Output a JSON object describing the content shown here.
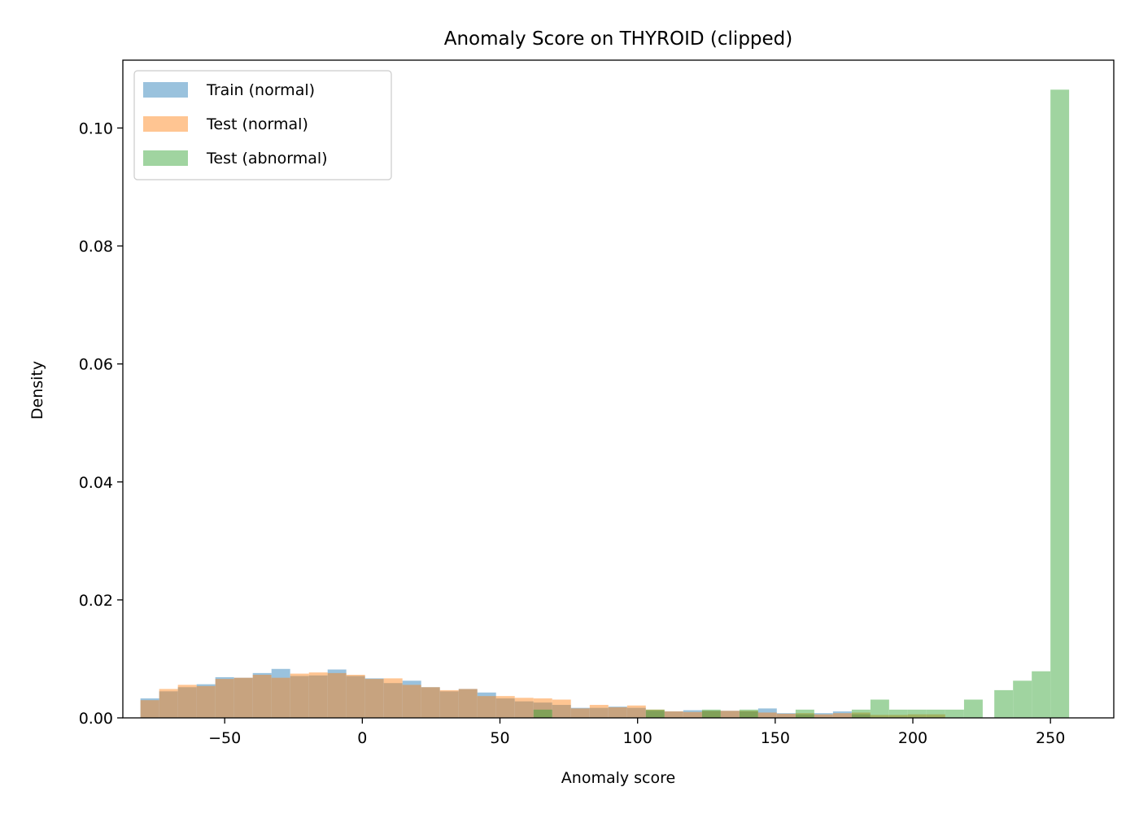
{
  "chart_data": {
    "type": "bar",
    "title": "Anomaly Score on THYROID (clipped)",
    "xlabel": "Anomaly score",
    "ylabel": "Density",
    "xlim": [
      -87,
      273
    ],
    "ylim": [
      0,
      0.1115
    ],
    "xticks": [
      -50,
      0,
      50,
      100,
      150,
      200,
      250
    ],
    "xtick_labels": [
      "−50",
      "0",
      "50",
      "100",
      "150",
      "200",
      "250"
    ],
    "yticks": [
      0,
      0.02,
      0.04,
      0.06,
      0.08,
      0.1
    ],
    "ytick_labels": [
      "0.00",
      "0.02",
      "0.04",
      "0.06",
      "0.08",
      "0.10"
    ],
    "grid": false,
    "legend_position": "top-left",
    "bin_width": 6.78,
    "series": [
      {
        "name": "Train (normal)",
        "color": "#1f77b4",
        "opacity": 0.45,
        "bin_starts": [
          -80.6,
          -73.8,
          -67.0,
          -60.2,
          -53.4,
          -46.6,
          -39.8,
          -33.0,
          -26.2,
          -19.4,
          -12.6,
          -5.8,
          1.0,
          7.8,
          14.6,
          21.4,
          28.2,
          35.0,
          41.8,
          48.6,
          55.4,
          62.2,
          69.0,
          75.8,
          82.6,
          89.4,
          96.2,
          103.0,
          109.8,
          116.6,
          123.4,
          130.2,
          137.0,
          143.8,
          150.6,
          157.4,
          164.2,
          171.0,
          177.8
        ],
        "values": [
          0.0033,
          0.0045,
          0.0052,
          0.0057,
          0.0069,
          0.0068,
          0.0076,
          0.0083,
          0.0071,
          0.0072,
          0.0082,
          0.0071,
          0.0067,
          0.0059,
          0.0063,
          0.0052,
          0.0045,
          0.0049,
          0.0043,
          0.0033,
          0.0028,
          0.0026,
          0.0022,
          0.0017,
          0.0017,
          0.0019,
          0.0017,
          0.0012,
          0.0011,
          0.0013,
          0.0012,
          0.0012,
          0.0011,
          0.0016,
          0.0008,
          0.0006,
          0.0008,
          0.0011,
          0.0006
        ]
      },
      {
        "name": "Test (normal)",
        "color": "#ff7f0e",
        "opacity": 0.45,
        "bin_starts": [
          -80.6,
          -73.8,
          -67.0,
          -60.2,
          -53.4,
          -46.6,
          -39.8,
          -33.0,
          -26.2,
          -19.4,
          -12.6,
          -5.8,
          1.0,
          7.8,
          14.6,
          21.4,
          28.2,
          35.0,
          41.8,
          48.6,
          55.4,
          62.2,
          69.0,
          75.8,
          82.6,
          89.4,
          96.2,
          103.0,
          109.8,
          116.6,
          123.4,
          130.2,
          137.0,
          143.8,
          150.6,
          157.4,
          164.2,
          171.0,
          177.8,
          184.6,
          191.4,
          198.2,
          205.0
        ],
        "values": [
          0.003,
          0.0049,
          0.0056,
          0.0054,
          0.0066,
          0.0068,
          0.0073,
          0.0068,
          0.0075,
          0.0077,
          0.0076,
          0.0073,
          0.0066,
          0.0067,
          0.0056,
          0.0052,
          0.0047,
          0.0049,
          0.0037,
          0.0037,
          0.0034,
          0.0033,
          0.0031,
          0.0016,
          0.0022,
          0.0018,
          0.0021,
          0.0014,
          0.0011,
          0.001,
          0.0012,
          0.0012,
          0.0012,
          0.0009,
          0.0007,
          0.0008,
          0.0006,
          0.0008,
          0.0009,
          0.0005,
          0.0005,
          0.0006,
          0.0006
        ]
      },
      {
        "name": "Test (abnormal)",
        "color": "#2ca02c",
        "opacity": 0.45,
        "bin_starts": [
          62.2,
          103.0,
          123.4,
          137.0,
          157.4,
          177.8,
          184.6,
          191.4,
          198.2,
          205.0,
          211.8,
          218.6,
          229.6,
          236.4,
          243.2,
          250.0
        ],
        "values": [
          0.0014,
          0.0014,
          0.0014,
          0.0014,
          0.0014,
          0.0014,
          0.0031,
          0.0014,
          0.0014,
          0.0014,
          0.0014,
          0.0031,
          0.0047,
          0.0063,
          0.0079,
          0.1065
        ]
      }
    ]
  }
}
